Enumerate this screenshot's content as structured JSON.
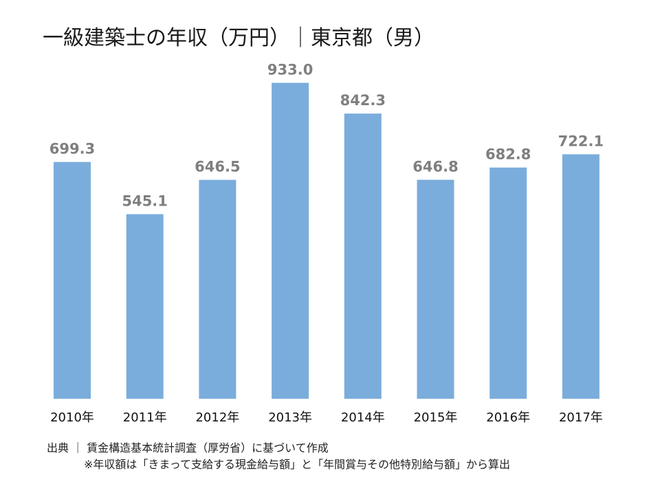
{
  "title": "一級建築士の年収（万円）｜東京都（男）",
  "source": "出典 ｜ 賃金構造基本統計調査（厚労省）に基づいて作成",
  "note": "※年収額は「きまって支給する現金給与額」と「年間賞与その他特別給与額」から算出",
  "colors": {
    "bar": "#7aaddc",
    "value_label": "#7f7f7f",
    "category_label": "#111111"
  },
  "chart_data": {
    "type": "bar",
    "title": "一級建築士の年収（万円）｜東京都（男）",
    "categories": [
      "2010年",
      "2011年",
      "2012年",
      "2013年",
      "2014年",
      "2015年",
      "2016年",
      "2017年"
    ],
    "values": [
      699.3,
      545.1,
      646.5,
      933.0,
      842.3,
      646.8,
      682.8,
      722.1
    ],
    "value_labels": [
      "699.3",
      "545.1",
      "646.5",
      "933.0",
      "842.3",
      "646.8",
      "682.8",
      "722.1"
    ],
    "xlabel": "",
    "ylabel": "",
    "ylim": [
      0,
      1000
    ],
    "grid": false,
    "legend": "none"
  }
}
